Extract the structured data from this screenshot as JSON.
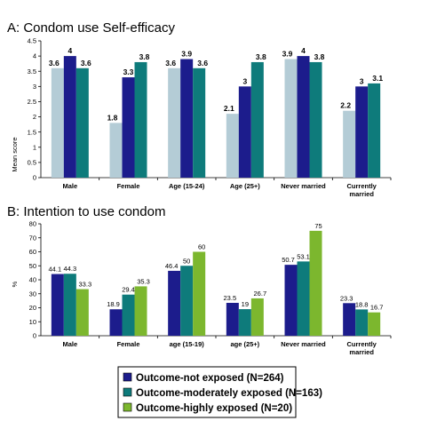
{
  "legend": {
    "items": [
      {
        "label": "Outcome-not exposed (N=264)",
        "color": "#1c1c8c"
      },
      {
        "label": "Outcome-moderately exposed (N=163)",
        "color": "#0e7b7b"
      },
      {
        "label": "Outcome-highly exposed (N=20)",
        "color": "#7cb72e"
      }
    ]
  },
  "chart_data": [
    {
      "type": "bar",
      "title": "A: Condom use Self-efficacy",
      "ylabel": "Mean score",
      "ylim": [
        0,
        4.5
      ],
      "yticks": [
        "0",
        "0.5",
        "1",
        "1.5",
        "2",
        "2.5",
        "3",
        "3.5",
        "4",
        "4.5"
      ],
      "categories": [
        [
          "Male"
        ],
        [
          "Female"
        ],
        [
          "Age (15-24)"
        ],
        [
          "Age (25+)"
        ],
        [
          "Never married"
        ],
        [
          "Currently",
          "married"
        ]
      ],
      "series_colors": [
        "#b4ccd6",
        "#1c1c8c",
        "#0e7b7b"
      ],
      "series": [
        {
          "values": [
            3.6,
            1.8,
            3.6,
            2.1,
            3.9,
            2.2
          ],
          "labels": [
            "3.6",
            "1.8",
            "3.6",
            "2.1",
            "3.9",
            "2.2"
          ]
        },
        {
          "values": [
            4,
            3.3,
            3.9,
            3,
            4,
            3
          ],
          "labels": [
            "4",
            "3.3",
            "3.9",
            "3",
            "4",
            "3"
          ]
        },
        {
          "values": [
            3.6,
            3.8,
            3.6,
            3.8,
            3.8,
            3.1
          ],
          "labels": [
            "3.6",
            "3.8",
            "3.6",
            "3.8",
            "3.8",
            "3.1"
          ]
        }
      ],
      "grid": false
    },
    {
      "type": "bar",
      "title": "B: Intention to use condom",
      "ylabel": "%",
      "ylim": [
        0,
        80
      ],
      "yticks": [
        "0",
        "10",
        "20",
        "30",
        "40",
        "50",
        "60",
        "70",
        "80"
      ],
      "categories": [
        [
          "Male"
        ],
        [
          "Female"
        ],
        [
          "age (15-19)"
        ],
        [
          "age (25+)"
        ],
        [
          "Never married"
        ],
        [
          "Currently",
          "married"
        ]
      ],
      "series_colors": [
        "#1c1c8c",
        "#0e7b7b",
        "#7cb72e"
      ],
      "series": [
        {
          "name": "Outcome-not exposed (N=264)",
          "values": [
            44.1,
            18.9,
            46.4,
            23.5,
            50.7,
            23.3
          ],
          "labels": [
            "44.1",
            "18.9",
            "46.4",
            "23.5",
            "50.7",
            "23.3"
          ]
        },
        {
          "name": "Outcome-moderately exposed (N=163)",
          "values": [
            44.3,
            29.4,
            50,
            19,
            53.1,
            18.8
          ],
          "labels": [
            "44.3",
            "29.4",
            "50",
            "19",
            "53.1",
            "18.8"
          ]
        },
        {
          "name": "Outcome-highly exposed (N=20)",
          "values": [
            33.3,
            35.3,
            60,
            26.7,
            75,
            16.7
          ],
          "labels": [
            "33.3",
            "35.3",
            "60",
            "26.7",
            "75",
            "16.7"
          ]
        }
      ],
      "grid": false
    }
  ]
}
